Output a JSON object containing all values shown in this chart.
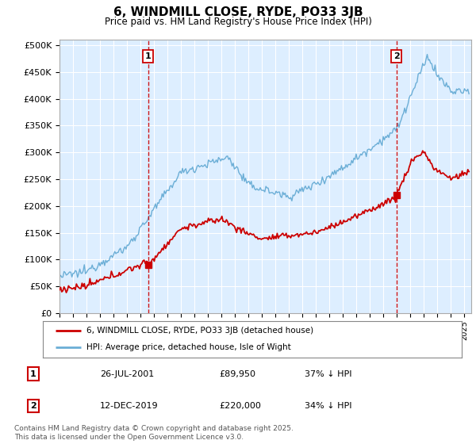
{
  "title": "6, WINDMILL CLOSE, RYDE, PO33 3JB",
  "subtitle": "Price paid vs. HM Land Registry's House Price Index (HPI)",
  "ylabel_ticks": [
    "£0",
    "£50K",
    "£100K",
    "£150K",
    "£200K",
    "£250K",
    "£300K",
    "£350K",
    "£400K",
    "£450K",
    "£500K"
  ],
  "ytick_vals": [
    0,
    50000,
    100000,
    150000,
    200000,
    250000,
    300000,
    350000,
    400000,
    450000,
    500000
  ],
  "ylim": [
    0,
    510000
  ],
  "xlim_start": 1995.0,
  "xlim_end": 2025.5,
  "hpi_color": "#6baed6",
  "price_color": "#cc0000",
  "marker1_date": 2001.57,
  "marker1_price": 89950,
  "marker2_date": 2019.95,
  "marker2_price": 220000,
  "legend_label1": "6, WINDMILL CLOSE, RYDE, PO33 3JB (detached house)",
  "legend_label2": "HPI: Average price, detached house, Isle of Wight",
  "table_row1": [
    "1",
    "26-JUL-2001",
    "£89,950",
    "37% ↓ HPI"
  ],
  "table_row2": [
    "2",
    "12-DEC-2019",
    "£220,000",
    "34% ↓ HPI"
  ],
  "footer": "Contains HM Land Registry data © Crown copyright and database right 2025.\nThis data is licensed under the Open Government Licence v3.0.",
  "background_color": "#ffffff",
  "plot_bg_color": "#ddeeff",
  "grid_color": "#ffffff"
}
